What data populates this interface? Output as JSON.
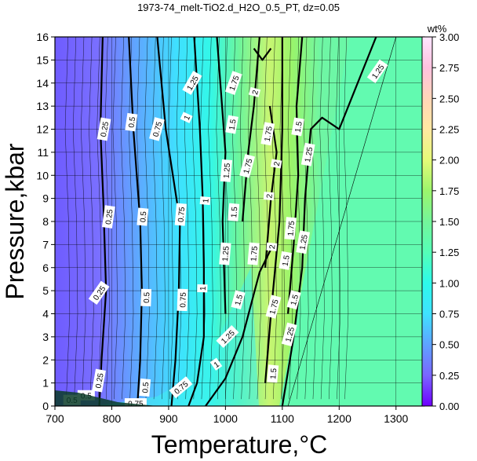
{
  "chart_data": {
    "type": "heatmap",
    "title": "1973-74_melt-TiO2.d_H2O_0.5_PT, dz=0.05",
    "xlabel": "Temperature,°C",
    "ylabel": "Pressure,kbar",
    "xlim": [
      700,
      1350
    ],
    "ylim": [
      0,
      16
    ],
    "x_ticks": [
      "700",
      "800",
      "900",
      "1000",
      "1100",
      "1200",
      "1300"
    ],
    "y_ticks": [
      "0",
      "1",
      "2",
      "3",
      "4",
      "5",
      "6",
      "7",
      "8",
      "9",
      "10",
      "11",
      "12",
      "13",
      "14",
      "15",
      "16"
    ],
    "grid": true,
    "colorbar": {
      "label": "wt%",
      "range": [
        0,
        3
      ],
      "ticks": [
        "0.00",
        "0.25",
        "0.50",
        "0.75",
        "1.00",
        "1.25",
        "1.50",
        "1.75",
        "2.00",
        "2.25",
        "2.50",
        "2.75",
        "3.00"
      ],
      "stops": [
        {
          "value": 0.0,
          "color": "#6e00ff"
        },
        {
          "value": 0.25,
          "color": "#7a66ff"
        },
        {
          "value": 0.5,
          "color": "#5ea3ff"
        },
        {
          "value": 0.75,
          "color": "#3fe2ff"
        },
        {
          "value": 1.0,
          "color": "#2dfaea"
        },
        {
          "value": 1.25,
          "color": "#55ffb7"
        },
        {
          "value": 1.5,
          "color": "#74f59a"
        },
        {
          "value": 1.75,
          "color": "#9cf56c"
        },
        {
          "value": 2.0,
          "color": "#e5fa78"
        },
        {
          "value": 2.25,
          "color": "#ffe8a2"
        },
        {
          "value": 2.5,
          "color": "#ffd6b8"
        },
        {
          "value": 2.75,
          "color": "#ffc2df"
        },
        {
          "value": 3.0,
          "color": "#ffe6ff"
        }
      ]
    },
    "contour_labels": [
      {
        "text": "0.25",
        "x": 787,
        "y": 12.0,
        "rot": -80
      },
      {
        "text": "0.5",
        "x": 835,
        "y": 12.3,
        "rot": -82
      },
      {
        "text": "0.75",
        "x": 880,
        "y": 12.0,
        "rot": -75
      },
      {
        "text": "1",
        "x": 932,
        "y": 12.5,
        "rot": -65
      },
      {
        "text": "1.25",
        "x": 942,
        "y": 14.0,
        "rot": -60
      },
      {
        "text": "1.75",
        "x": 1015,
        "y": 14.0,
        "rot": -70
      },
      {
        "text": "2",
        "x": 1052,
        "y": 13.6,
        "rot": -75
      },
      {
        "text": "1.5",
        "x": 1012,
        "y": 12.2,
        "rot": -80
      },
      {
        "text": "1.75",
        "x": 1075,
        "y": 11.8,
        "rot": -80
      },
      {
        "text": "1.5",
        "x": 1128,
        "y": 12.1,
        "rot": -80
      },
      {
        "text": "1.25",
        "x": 1268,
        "y": 14.5,
        "rot": -55
      },
      {
        "text": "1.25",
        "x": 1146,
        "y": 10.9,
        "rot": -80
      },
      {
        "text": "1.75",
        "x": 1039,
        "y": 10.4,
        "rot": -75
      },
      {
        "text": "2",
        "x": 1090,
        "y": 10.5,
        "rot": -80
      },
      {
        "text": "1.25",
        "x": 1002,
        "y": 10.2,
        "rot": -85
      },
      {
        "text": "2",
        "x": 1077,
        "y": 9.1,
        "rot": -85
      },
      {
        "text": "1",
        "x": 965,
        "y": 8.9,
        "rot": -85
      },
      {
        "text": "0.25",
        "x": 795,
        "y": 8.2,
        "rot": -82
      },
      {
        "text": "0.5",
        "x": 855,
        "y": 8.2,
        "rot": -85
      },
      {
        "text": "0.75",
        "x": 922,
        "y": 8.3,
        "rot": -85
      },
      {
        "text": "1.5",
        "x": 1015,
        "y": 8.4,
        "rot": -85
      },
      {
        "text": "1.75",
        "x": 1115,
        "y": 7.7,
        "rot": -85
      },
      {
        "text": "1.25",
        "x": 1000,
        "y": 6.6,
        "rot": -85
      },
      {
        "text": "2",
        "x": 1082,
        "y": 6.9,
        "rot": -85
      },
      {
        "text": "1.75",
        "x": 1050,
        "y": 6.6,
        "rot": -85
      },
      {
        "text": "1.25",
        "x": 1137,
        "y": 7.1,
        "rot": -80
      },
      {
        "text": "1.5",
        "x": 1106,
        "y": 6.3,
        "rot": -80
      },
      {
        "text": "0.25",
        "x": 778,
        "y": 4.9,
        "rot": -55
      },
      {
        "text": "0.5",
        "x": 861,
        "y": 4.7,
        "rot": -88
      },
      {
        "text": "0.75",
        "x": 925,
        "y": 4.6,
        "rot": -88
      },
      {
        "text": "1",
        "x": 960,
        "y": 5.1,
        "rot": -88
      },
      {
        "text": "1.5",
        "x": 1023,
        "y": 4.6,
        "rot": -75
      },
      {
        "text": "1.75",
        "x": 1085,
        "y": 4.3,
        "rot": -75
      },
      {
        "text": "1.5",
        "x": 1121,
        "y": 4.6,
        "rot": -75
      },
      {
        "text": "1.25",
        "x": 1004,
        "y": 3.0,
        "rot": -45
      },
      {
        "text": "1.25",
        "x": 1113,
        "y": 3.1,
        "rot": -75
      },
      {
        "text": "1",
        "x": 984,
        "y": 1.8,
        "rot": -35
      },
      {
        "text": "1.5",
        "x": 1084,
        "y": 1.4,
        "rot": -85
      },
      {
        "text": "0.25",
        "x": 778,
        "y": 1.1,
        "rot": -80
      },
      {
        "text": "0.5",
        "x": 859,
        "y": 0.8,
        "rot": -85
      },
      {
        "text": "0.75",
        "x": 922,
        "y": 0.8,
        "rot": -40
      },
      {
        "text": "0.5",
        "x": 730,
        "y": 0.25,
        "rot": 0
      },
      {
        "text": "0.5",
        "x": 755,
        "y": 0.45,
        "rot": 0
      },
      {
        "text": "0.75",
        "x": 842,
        "y": 0.1,
        "rot": 0
      }
    ]
  }
}
